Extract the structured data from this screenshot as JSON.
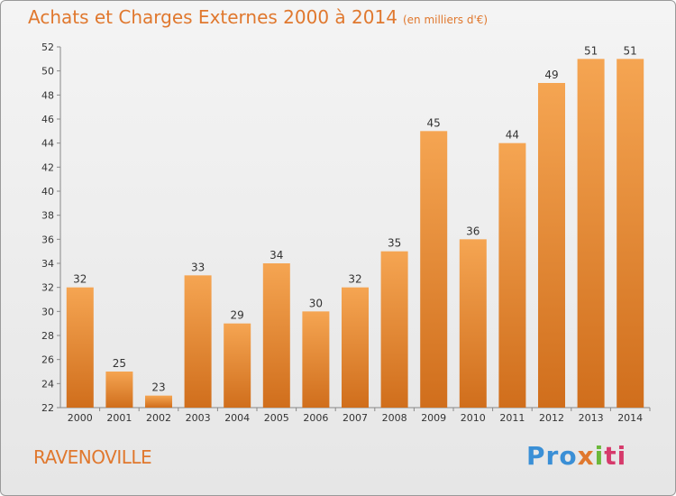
{
  "chart_data": {
    "type": "bar",
    "title": "Achats et Charges Externes 2000 à 2014",
    "subtitle": "(en milliers d'€)",
    "categories": [
      "2000",
      "2001",
      "2002",
      "2003",
      "2004",
      "2005",
      "2006",
      "2007",
      "2008",
      "2009",
      "2010",
      "2011",
      "2012",
      "2013",
      "2014"
    ],
    "values": [
      32,
      25,
      23,
      33,
      29,
      34,
      30,
      32,
      35,
      45,
      36,
      44,
      49,
      51,
      51
    ],
    "ylim": [
      22,
      52
    ],
    "yticks": [
      22,
      24,
      26,
      28,
      30,
      32,
      34,
      36,
      38,
      40,
      42,
      44,
      46,
      48,
      50,
      52
    ],
    "grid": false,
    "bar_color_top": "#f5a552",
    "bar_color_bottom": "#d06e1c"
  },
  "location": "RAVENOVILLE",
  "logo": {
    "text": "Proxiti",
    "parts": [
      "Pro",
      "x",
      "i",
      "ti"
    ]
  },
  "colors": {
    "accent": "#e0782e"
  }
}
